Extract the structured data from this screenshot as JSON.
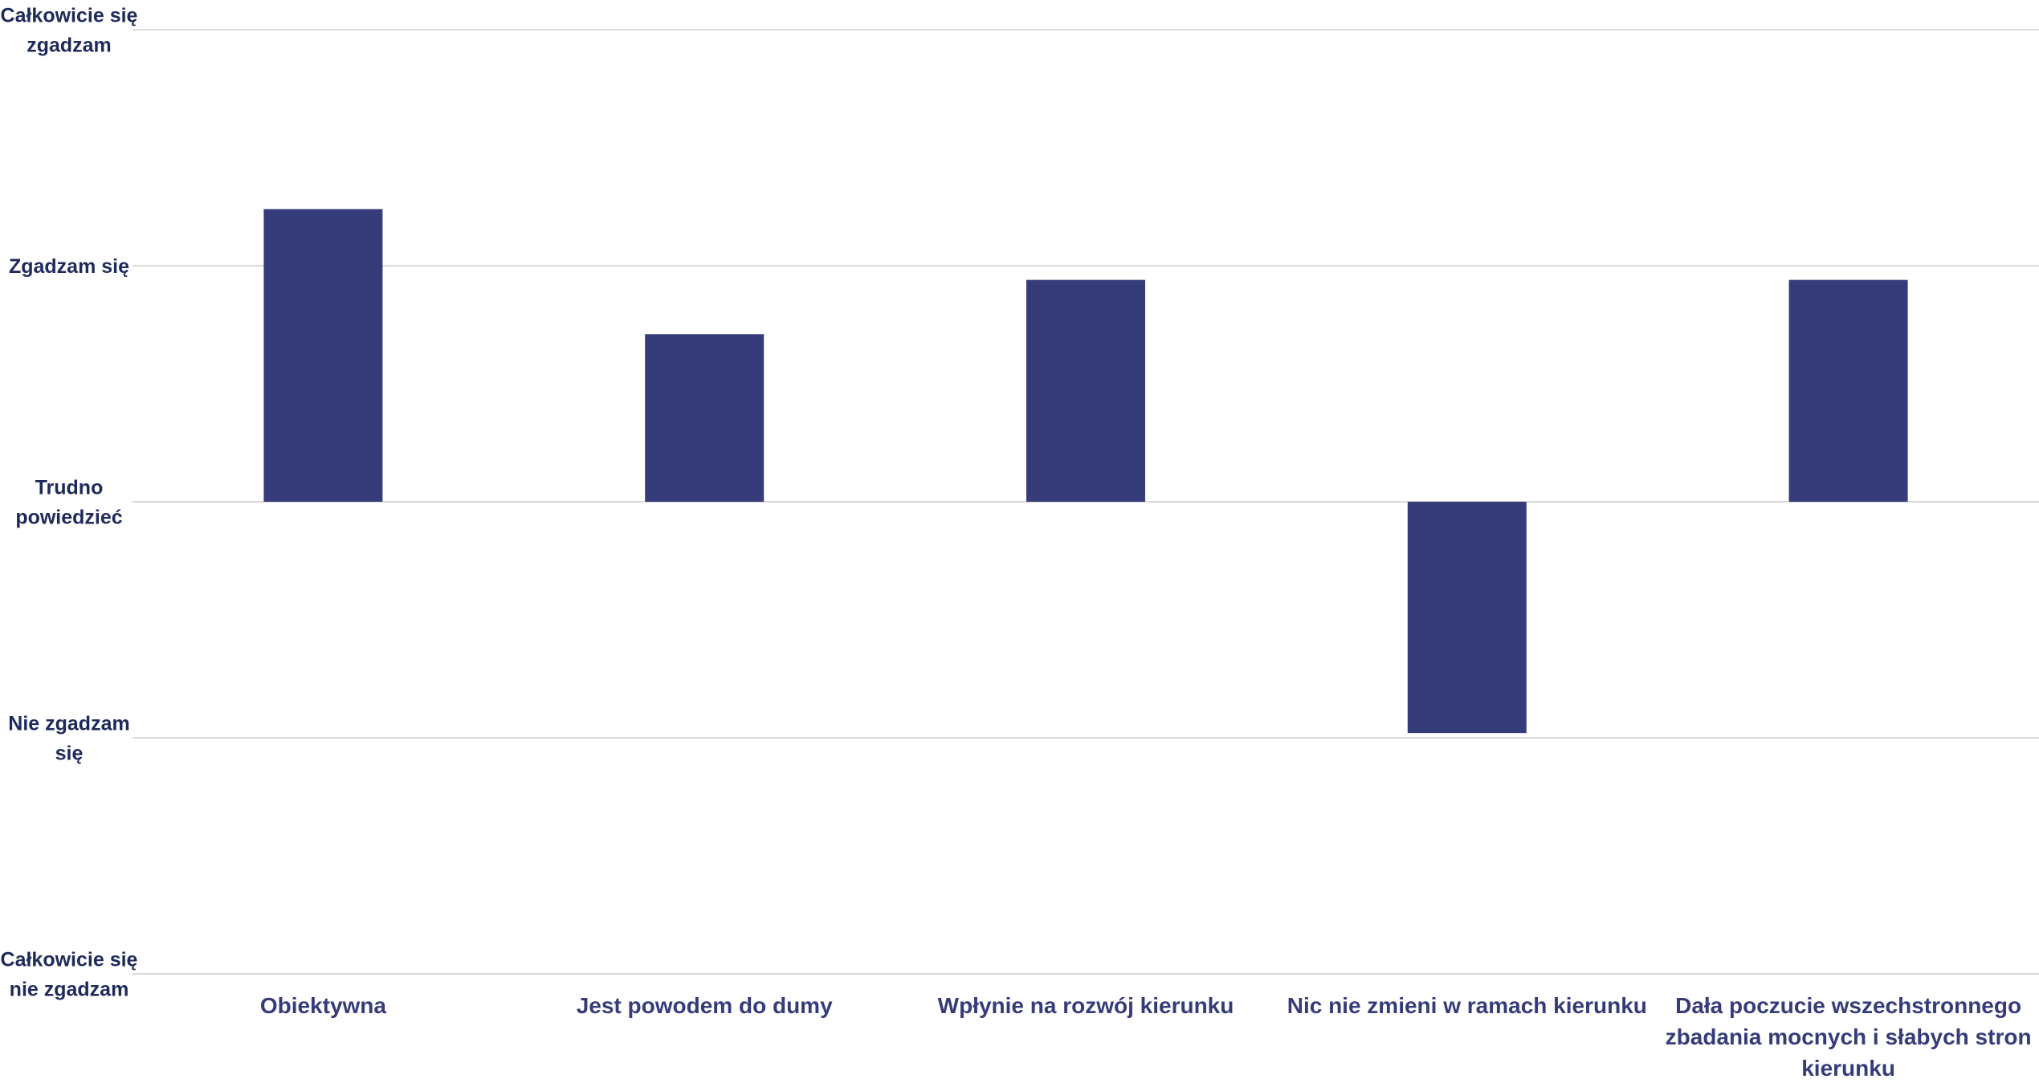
{
  "chart_data": {
    "type": "bar",
    "title": "",
    "xlabel": "",
    "ylabel": "",
    "ylim": [
      -2,
      2
    ],
    "y_tick_values": [
      2,
      1,
      0,
      -1,
      -2
    ],
    "y_tick_labels": [
      [
        "Całkowicie się",
        "zgadzam"
      ],
      [
        "Zgadzam się"
      ],
      [
        "Trudno",
        "powiedzieć"
      ],
      [
        "Nie zgadzam",
        "się"
      ],
      [
        "Całkowicie się",
        "nie zgadzam"
      ]
    ],
    "categories": [
      [
        "Obiektywna"
      ],
      [
        "Jest powodem do dumy"
      ],
      [
        "Wpłynie na rozwój kierunku"
      ],
      [
        "Nic nie zmieni w ramach kierunku"
      ],
      [
        "Dała poczucie wszechstronnego",
        "zbadania mocnych i słabych stron",
        "kierunku"
      ]
    ],
    "values": [
      1.24,
      0.71,
      0.94,
      -0.98,
      0.94
    ],
    "grid": true,
    "legend": "none",
    "colors": {
      "bar": "#353c79",
      "grid": "#d9d9d9",
      "y_label": "#1f2a5c",
      "x_label": "#353c79"
    }
  }
}
